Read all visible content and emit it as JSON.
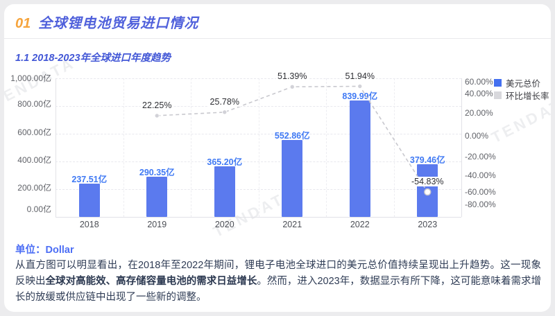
{
  "header": {
    "section_number": "01",
    "section_title": "全球锂电池贸易进口情况",
    "subtitle": "1.1 2018-2023年全球进口年度趋势"
  },
  "watermark": "TENDATA",
  "unit_label": "单位：Dollar",
  "analysis": {
    "part1": "从直方图可以明显看出，在2018年至2022年期间，锂电子电池全球进口的美元总价值持续呈现出上升趋势。这一现象反映出",
    "bold": "全球对高能效、高存储容量电池的需求日益增长",
    "part2": "。然而，进入2023年，数据显示有所下降，这可能意味着需求增长的放缓或供应链中出现了一些新的调整。"
  },
  "chart_data": {
    "type": "bar+line",
    "title": "1.1 2018-2023年全球进口年度趋势",
    "categories": [
      "2018",
      "2019",
      "2020",
      "2021",
      "2022",
      "2023"
    ],
    "series": [
      {
        "name": "美元总价",
        "type": "bar",
        "axis": "left",
        "unit": "亿",
        "values": [
          237.51,
          290.35,
          365.2,
          552.86,
          839.99,
          379.46
        ],
        "labels": [
          "237.51亿",
          "290.35亿",
          "365.20亿",
          "552.86亿",
          "839.99亿",
          "379.46亿"
        ],
        "color": "#5b7aee"
      },
      {
        "name": "环比增长率",
        "type": "line",
        "axis": "right",
        "unit": "%",
        "values": [
          null,
          22.25,
          25.78,
          51.39,
          51.94,
          -54.83
        ],
        "labels": [
          null,
          "22.25%",
          "25.78%",
          "51.39%",
          "51.94%",
          "-54.83%"
        ],
        "color": "#c8c8ce"
      }
    ],
    "left_axis": {
      "min": 0,
      "max": 1000,
      "ticks": [
        "1,000.00亿",
        "800.00亿",
        "600.00亿",
        "400.00亿",
        "200.00亿",
        "0.00亿"
      ]
    },
    "right_axis": {
      "min": -80,
      "max": 60,
      "ticks": [
        "60.00%",
        "40.00%",
        "20.00%",
        "0.00%",
        "-20.00%",
        "-40.00%",
        "-60.00%",
        "-80.00%"
      ]
    },
    "legend": {
      "position": "top-right",
      "items": [
        {
          "label": "美元总价",
          "color": "#4470f0"
        },
        {
          "label": "环比增长率",
          "color": "#d8d8dc"
        }
      ]
    },
    "grid": true
  }
}
